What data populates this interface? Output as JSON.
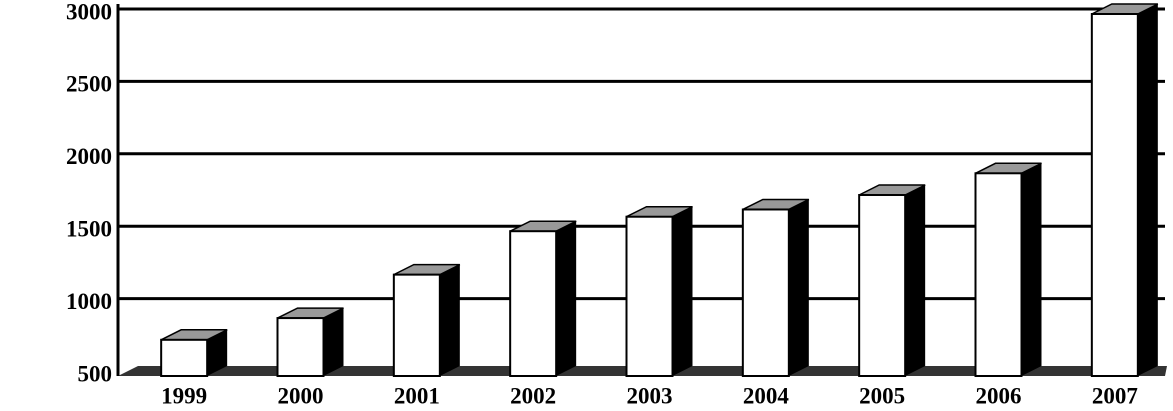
{
  "chart_data": {
    "type": "bar3d",
    "categories": [
      "1999",
      "2000",
      "2001",
      "2002",
      "2003",
      "2004",
      "2005",
      "2006",
      "2007"
    ],
    "values": [
      750,
      900,
      1200,
      1500,
      1600,
      1650,
      1750,
      1900,
      3000
    ],
    "color": "#ffffff",
    "ylim": [
      500,
      3000
    ],
    "yticks": [
      500,
      1000,
      1500,
      2000,
      2500,
      3000
    ],
    "grid": true
  }
}
